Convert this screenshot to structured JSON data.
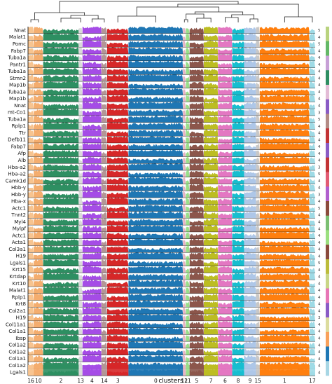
{
  "chart_data": {
    "type": "heatmap",
    "subtype": "tracksplot",
    "title": "",
    "xlabel": "clusters",
    "ylabel": "",
    "dendrogram": true,
    "grid": false,
    "legend": "none",
    "genes": [
      "Nnat",
      "Malat1",
      "Pomc",
      "Fabp7",
      "Tuba1a",
      "Pantr1",
      "Tuba1a",
      "Stmn2",
      "Map1b",
      "Tuba1a",
      "Map1b",
      "Nnat",
      "mt-Co1",
      "Tuba1a",
      "Rplp1",
      "Ttr",
      "Defb11",
      "Fabp7",
      "Afp",
      "Alb",
      "Hba-a2",
      "Hba-a2",
      "Camk1d",
      "Hbb-y",
      "Hbb-y",
      "Hba-x",
      "Actc1",
      "Tnnt2",
      "Myl4",
      "Mylpf",
      "Actc1",
      "Acta1",
      "Col3a1",
      "H19",
      "Lgals1",
      "Krt15",
      "Krtdap",
      "Krt10",
      "Malat1",
      "Rplp1",
      "Krt8",
      "Col2a1",
      "H19",
      "Col11a1",
      "Col1a1",
      "Ibsp",
      "Col1a2",
      "Col1a2",
      "Col1a1",
      "Col1a2",
      "Lgals1"
    ],
    "gene_group_colors": [
      "#b9d37e",
      "#63b866",
      "#c7a0d6",
      "#2e8f62",
      "#e3bcd6",
      "#8a5bc5",
      "#b38b85",
      "#c23335",
      "#8a5bc5",
      "#c23335",
      "#e25b73",
      "#b15fce",
      "#8b4a3c",
      "#7bbf72",
      "#9be07f",
      "#8b4a3c",
      "#bcbc3a",
      "#c9d686",
      "#e776b6",
      "#8a5bc5",
      "#dcdc9e",
      "#f9a15b",
      "#1f77b4",
      "#a7d6e4"
    ],
    "scale_ticks": [
      "5",
      "4",
      "5",
      "4",
      "4",
      "4",
      "4",
      "4",
      "4",
      "4",
      "4",
      "4",
      "3",
      "5",
      "4",
      "4",
      "4",
      "4",
      "4",
      "4",
      "3",
      "5",
      "4",
      "4",
      "3",
      "4",
      "5",
      "4",
      "4",
      "4",
      "4",
      "4",
      "4",
      "4",
      "5",
      "4",
      "4",
      "4",
      "4",
      "4",
      "4",
      "4",
      "3",
      "4",
      "4",
      "4",
      "4",
      "4",
      "4",
      "4",
      "4"
    ],
    "clusters": [
      {
        "name": "16",
        "color": "#f7c490",
        "weight": 1.2
      },
      {
        "name": "10",
        "color": "#f4ad6e",
        "weight": 2.0
      },
      {
        "name": "2",
        "color": "#2e8f62",
        "weight": 7.5
      },
      {
        "name": "13",
        "color": "#d9d9d9",
        "weight": 0.8
      },
      {
        "name": "4",
        "color": "#a54ce6",
        "weight": 4.0
      },
      {
        "name": "14",
        "color": "#b39696",
        "weight": 1.2
      },
      {
        "name": "3",
        "color": "#d62728",
        "weight": 4.5
      },
      {
        "name": "0",
        "color": "#1f77b4",
        "weight": 11.5
      },
      {
        "name": "12",
        "color": "#e6b3c4",
        "weight": 0.6
      },
      {
        "name": "11",
        "color": "#98df8a",
        "weight": 0.8
      },
      {
        "name": "5",
        "color": "#8c564b",
        "weight": 3.0
      },
      {
        "name": "7",
        "color": "#bcbd22",
        "weight": 3.0
      },
      {
        "name": "6",
        "color": "#e377c2",
        "weight": 3.0
      },
      {
        "name": "8",
        "color": "#17becf",
        "weight": 2.5
      },
      {
        "name": "9",
        "color": "#aec7e8",
        "weight": 2.5
      },
      {
        "name": "15",
        "color": "#c7c7c7",
        "weight": 0.8
      },
      {
        "name": "1",
        "color": "#ff7f0e",
        "weight": 10.5
      },
      {
        "name": "17",
        "color": "#9edae5",
        "weight": 1.2
      }
    ]
  }
}
